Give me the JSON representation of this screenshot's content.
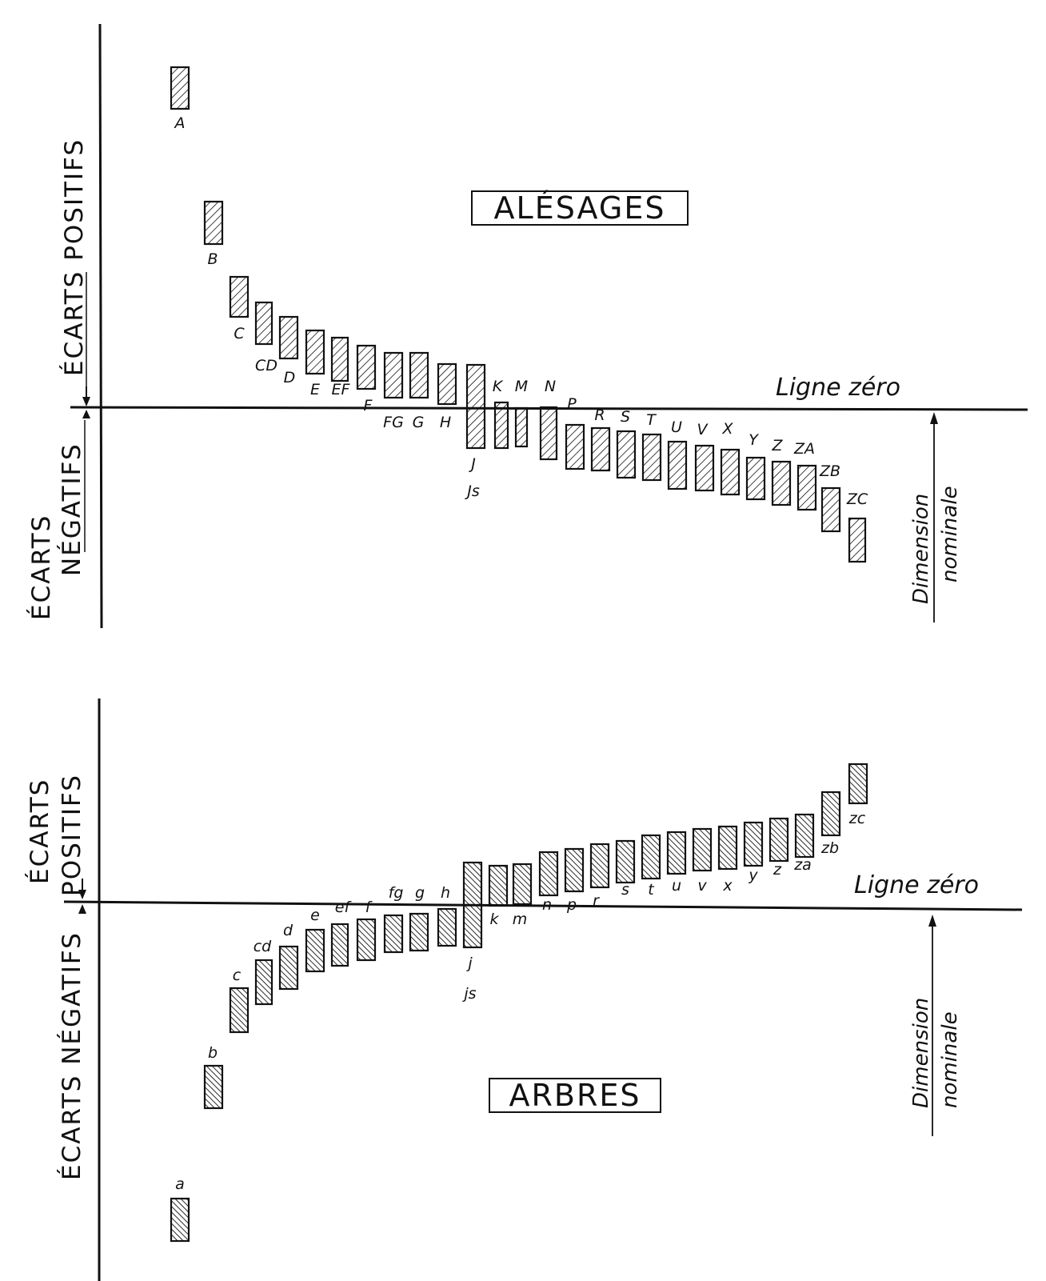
{
  "holes": {
    "title": "ALÉSAGES",
    "positive_label": "ÉCARTS POSITIFS",
    "negative_label_1": "ÉCARTS",
    "negative_label_2": "NÉGATIFS",
    "zero_line_label": "Ligne zéro",
    "dimension_label_1": "Dimension",
    "dimension_label_2": "nominale",
    "letters": [
      "A",
      "B",
      "C",
      "CD",
      "D",
      "E",
      "EF",
      "F",
      "FG",
      "G",
      "H",
      "J",
      "Js",
      "K",
      "M",
      "N",
      "P",
      "R",
      "S",
      "T",
      "U",
      "V",
      "X",
      "Y",
      "Z",
      "ZA",
      "ZB",
      "ZC"
    ]
  },
  "shafts": {
    "title": "ARBRES",
    "positive_label_1": "ÉCARTS",
    "positive_label_2": "POSITIFS",
    "negative_label": "ÉCARTS NÉGATIFS",
    "zero_line_label": "Ligne zéro",
    "dimension_label_1": "Dimension",
    "dimension_label_2": "nominale",
    "letters": [
      "a",
      "b",
      "c",
      "cd",
      "d",
      "e",
      "ef",
      "f",
      "fg",
      "g",
      "h",
      "j",
      "js",
      "k",
      "m",
      "n",
      "p",
      "r",
      "s",
      "t",
      "u",
      "v",
      "x",
      "y",
      "z",
      "za",
      "zb",
      "zc"
    ]
  },
  "colors": {
    "ink": "#111111",
    "paper": "#ffffff"
  }
}
